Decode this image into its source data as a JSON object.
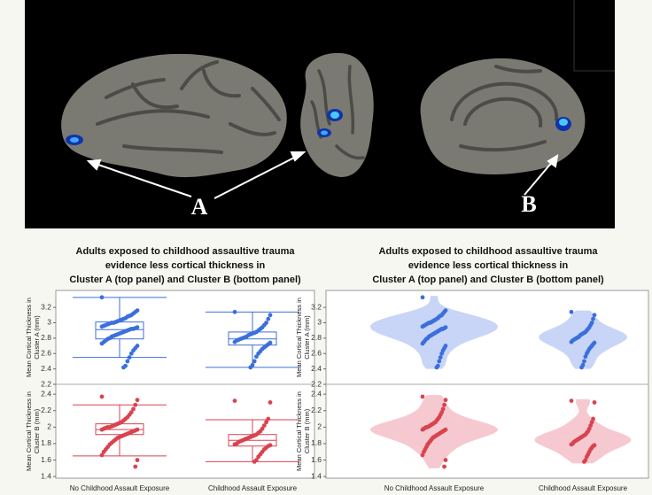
{
  "image_labels": [
    "A",
    "B"
  ],
  "chart_data": [
    {
      "type": "box",
      "title": [
        "Adults exposed to childhood assaultive trauma",
        "evidence less cortical thickness in",
        "Cluster A (top panel) and Cluster B (bottom panel)"
      ],
      "categories": [
        "No Childhood Assault Exposure",
        "Childhood Assault Exposure"
      ],
      "color_top": "#3b6fdc",
      "color_bottom": "#d9434f",
      "panels": [
        {
          "ylabel": [
            "Mean Cortical Thickness in",
            "Cluster A (mm)"
          ],
          "ylim": [
            2.2,
            3.42
          ],
          "yticks": [
            2.2,
            2.4,
            2.6,
            2.8,
            3.0,
            3.2
          ],
          "groups": [
            {
              "box": {
                "whislo": 2.55,
                "q1": 2.79,
                "med": 2.91,
                "q3": 3.01,
                "whishi": 3.33
              },
              "points": [
                3.33,
                3.16,
                3.14,
                3.12,
                3.1,
                3.09,
                3.08,
                3.06,
                3.05,
                3.04,
                3.03,
                3.02,
                3.01,
                3.0,
                3.0,
                2.99,
                2.98,
                2.97,
                2.96,
                2.95,
                2.94,
                2.93,
                2.92,
                2.92,
                2.91,
                2.9,
                2.89,
                2.88,
                2.87,
                2.86,
                2.85,
                2.84,
                2.83,
                2.82,
                2.8,
                2.79,
                2.77,
                2.75,
                2.73,
                2.7,
                2.67,
                2.64,
                2.6,
                2.55,
                2.5,
                2.44,
                2.42
              ]
            },
            {
              "box": {
                "whislo": 2.42,
                "q1": 2.71,
                "med": 2.79,
                "q3": 2.88,
                "whishi": 3.14
              },
              "points": [
                3.14,
                3.1,
                3.05,
                3.0,
                2.97,
                2.94,
                2.92,
                2.9,
                2.88,
                2.87,
                2.86,
                2.85,
                2.84,
                2.82,
                2.81,
                2.8,
                2.79,
                2.78,
                2.77,
                2.75,
                2.74,
                2.72,
                2.7,
                2.68,
                2.66,
                2.63,
                2.6,
                2.56,
                2.5,
                2.45,
                2.42
              ]
            }
          ]
        },
        {
          "ylabel": [
            "Mean Cortical Thickness in",
            "Cluster B (mm)"
          ],
          "ylim": [
            1.38,
            2.52
          ],
          "yticks": [
            1.4,
            1.6,
            1.8,
            2.0,
            2.2,
            2.4
          ],
          "groups": [
            {
              "box": {
                "whislo": 1.65,
                "q1": 1.91,
                "med": 1.97,
                "q3": 2.04,
                "whishi": 2.27
              },
              "points": [
                2.37,
                2.33,
                2.27,
                2.22,
                2.18,
                2.15,
                2.12,
                2.1,
                2.08,
                2.06,
                2.05,
                2.04,
                2.03,
                2.02,
                2.01,
                2.0,
                2.0,
                1.99,
                1.98,
                1.97,
                1.97,
                1.96,
                1.95,
                1.94,
                1.93,
                1.92,
                1.91,
                1.9,
                1.89,
                1.88,
                1.87,
                1.85,
                1.83,
                1.81,
                1.79,
                1.76,
                1.73,
                1.7,
                1.66,
                1.6,
                1.52
              ]
            },
            {
              "box": {
                "whislo": 1.58,
                "q1": 1.77,
                "med": 1.84,
                "q3": 1.91,
                "whishi": 2.09
              },
              "points": [
                2.32,
                2.3,
                2.1,
                2.06,
                2.02,
                1.98,
                1.95,
                1.93,
                1.91,
                1.9,
                1.89,
                1.88,
                1.87,
                1.86,
                1.85,
                1.84,
                1.83,
                1.82,
                1.8,
                1.79,
                1.78,
                1.77,
                1.75,
                1.73,
                1.7,
                1.67,
                1.64,
                1.6,
                1.58
              ]
            }
          ]
        }
      ]
    },
    {
      "type": "violin",
      "title": [
        "Adults exposed to childhood assaultive trauma",
        "evidence less cortical thickness in",
        "Cluster A (top panel) and Cluster B (bottom panel)"
      ],
      "categories": [
        "No Childhood Assault Exposure",
        "Childhood Assault Exposure"
      ],
      "color_top": "#3b6fdc",
      "color_bottom": "#d9434f",
      "fill_top": "#c8d5f6",
      "fill_bottom": "#f6c9d0",
      "panels": [
        {
          "ylabel": [
            "Mean Cortical Thickness in",
            "Cluster A (mm)"
          ],
          "ylim": [
            2.2,
            3.42
          ],
          "yticks": [
            2.2,
            2.4,
            2.6,
            2.8,
            3.0,
            3.2
          ]
        },
        {
          "ylabel": [
            "Mean Cortical Thickness in",
            "Cluster B (mm)"
          ],
          "ylim": [
            1.38,
            2.52
          ],
          "yticks": [
            1.4,
            1.6,
            1.8,
            2.0,
            2.2,
            2.4
          ]
        }
      ]
    }
  ]
}
